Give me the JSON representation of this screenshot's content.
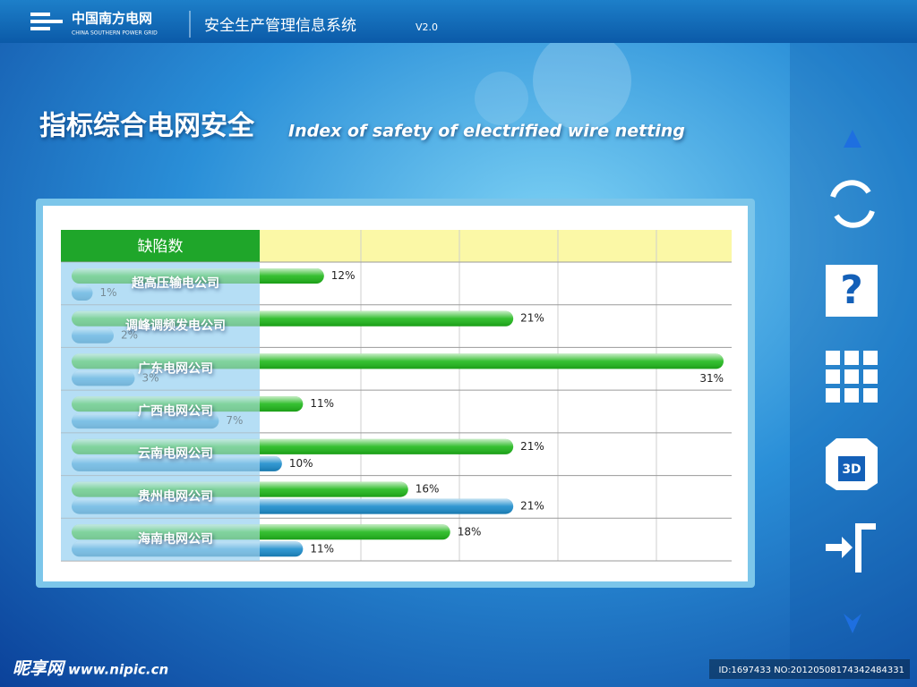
{
  "header": {
    "logo_cn": "中国南方电网",
    "logo_en": "CHINA SOUTHERN POWER GRID",
    "system": "安全生产管理信息系统",
    "version": "V2.0"
  },
  "page_title": {
    "cn": "指标综合电网安全",
    "en": "Index of safety of electrified wire netting"
  },
  "chart_data": {
    "type": "bar",
    "orientation": "horizontal",
    "header_label": "缺陷数",
    "categories": [
      "超高压输电公司",
      "调峰调频发电公司",
      "广东电网公司",
      "广西电网公司",
      "云南电网公司",
      "贵州电网公司",
      "海南电网公司"
    ],
    "series": [
      {
        "color": "#1fb81a",
        "values": [
          12,
          21,
          31,
          11,
          21,
          16,
          18
        ],
        "value_labels": [
          "12%",
          "21%",
          "31%",
          "11%",
          "21%",
          "16%",
          "18%"
        ]
      },
      {
        "color": "#1b8ccc",
        "values": [
          1,
          2,
          3,
          7,
          10,
          21,
          11
        ],
        "value_labels": [
          "1%",
          "2%",
          "3%",
          "7%",
          "10%",
          "21%",
          "11%"
        ]
      }
    ]
  },
  "watermark": {
    "site_cn": "昵享网",
    "site_url": "www.nipic.cn",
    "id": "ID:1697433 NO:20120508174342484331"
  }
}
